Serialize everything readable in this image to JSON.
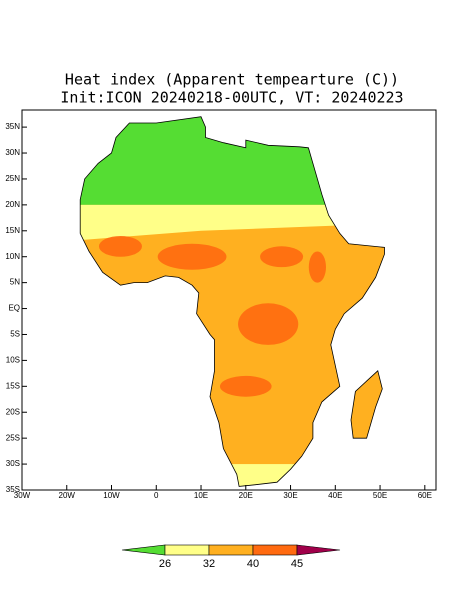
{
  "title": "Heat index (Apparent tempearture (C))",
  "subtitle": "Init:ICON 20240218-00UTC, VT: 20240223",
  "map": {
    "lon_range": [
      -30,
      62.5
    ],
    "lat_range": [
      -35,
      38.3
    ],
    "lon_ticks": [
      {
        "value": -30,
        "label": "30W"
      },
      {
        "value": -20,
        "label": "20W"
      },
      {
        "value": -10,
        "label": "10W"
      },
      0,
      {
        "value": 10,
        "label": "10E"
      },
      {
        "value": 20,
        "label": "20E"
      },
      {
        "value": 30,
        "label": "30E"
      },
      {
        "value": 40,
        "label": "40E"
      },
      {
        "value": 50,
        "label": "50E"
      },
      {
        "value": 60,
        "label": "60E"
      }
    ],
    "lat_ticks": [
      {
        "value": -35,
        "label": "35S"
      },
      {
        "value": -30,
        "label": "30S"
      },
      {
        "value": -25,
        "label": "25S"
      },
      {
        "value": -20,
        "label": "20S"
      },
      {
        "value": -15,
        "label": "15S"
      },
      {
        "value": -10,
        "label": "10S"
      },
      {
        "value": -5,
        "label": "5S"
      },
      {
        "value": 0,
        "label": "EQ"
      },
      {
        "value": 5,
        "label": "5N"
      },
      {
        "value": 10,
        "label": "10N"
      },
      {
        "value": 15,
        "label": "15N"
      },
      {
        "value": 20,
        "label": "20N"
      },
      {
        "value": 25,
        "label": "25N"
      },
      {
        "value": 30,
        "label": "30N"
      },
      {
        "value": 35,
        "label": "35N"
      }
    ]
  },
  "colorbar": {
    "levels": [
      26,
      32,
      40,
      45
    ],
    "colors": [
      "#55dd33",
      "#ffff88",
      "#ffb020",
      "#ff6a10",
      "#a0004a"
    ]
  }
}
